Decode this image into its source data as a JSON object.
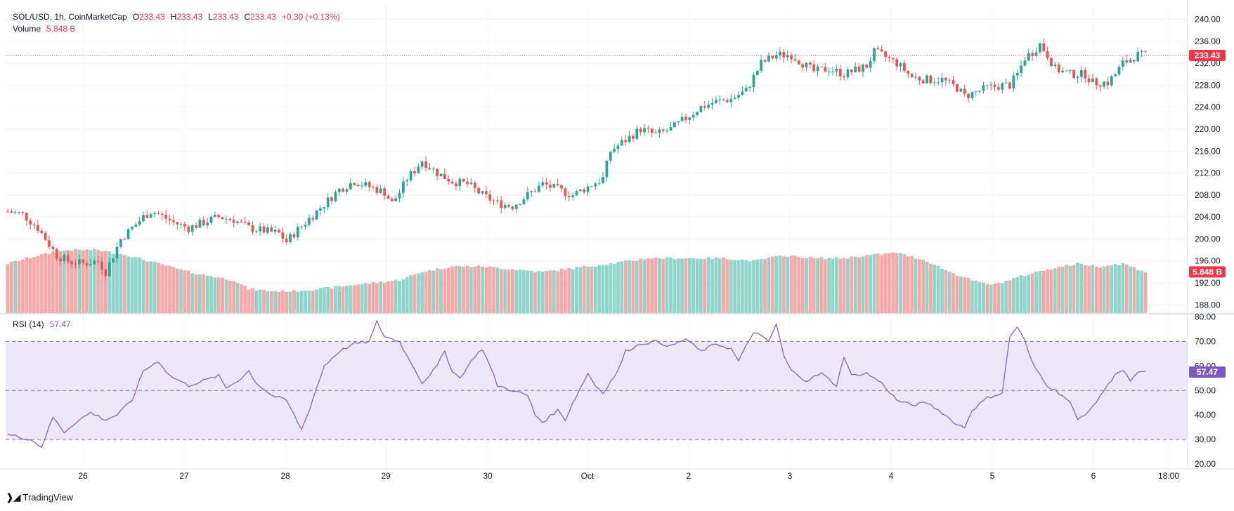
{
  "header": {
    "symbol": "SOL/USD, 1h, CoinMarketCap",
    "o_label": "O",
    "o_value": "233.43",
    "h_label": "H",
    "h_value": "233.43",
    "l_label": "L",
    "l_value": "233.43",
    "c_label": "C",
    "c_value": "233.43",
    "change": "+0.30 (+0.13%)",
    "volume_label": "Volume",
    "volume_value": "5.848 B",
    "rsi_label": "RSI (14)",
    "rsi_value": "57.47"
  },
  "footer": {
    "brand": "TradingView"
  },
  "colors": {
    "up": "#26a69a",
    "down": "#ef5350",
    "vol_up": "#8fd5c9",
    "vol_down": "#f7a8a8",
    "rsi_line": "#7e57c2",
    "rsi_band": "#ece8f8",
    "price_line": "#f23645",
    "grid": "#f0f3fa"
  },
  "chart_data": [
    {
      "type": "candlestick",
      "title": "SOL/USD, 1h, CoinMarketCap",
      "y_axis_ticks": [
        "240.00",
        "236.00",
        "232.00",
        "228.00",
        "224.00",
        "220.00",
        "216.00",
        "212.00",
        "208.00",
        "204.00",
        "200.00",
        "196.00",
        "192.00",
        "188.00"
      ],
      "ylim": [
        186.5,
        242.5
      ],
      "x_axis_ticks": [
        "26",
        "27",
        "28",
        "29",
        "30",
        "Oct",
        "2",
        "3",
        "4",
        "5",
        "6",
        "18:00"
      ],
      "last_price_label": "233.43",
      "volume_label": "5.848 B",
      "anchors_price": [
        [
          0,
          205
        ],
        [
          4,
          204.5
        ],
        [
          8,
          202
        ],
        [
          10,
          200
        ],
        [
          13,
          197
        ],
        [
          16,
          196
        ],
        [
          20,
          195.5
        ],
        [
          24,
          196
        ],
        [
          26,
          194
        ],
        [
          28,
          197
        ],
        [
          30,
          200
        ],
        [
          33,
          202
        ],
        [
          36,
          204
        ],
        [
          38,
          205
        ],
        [
          40,
          204.5
        ],
        [
          44,
          203
        ],
        [
          48,
          202
        ],
        [
          52,
          203
        ],
        [
          56,
          204
        ],
        [
          60,
          203.5
        ],
        [
          64,
          202
        ],
        [
          68,
          201.5
        ],
        [
          72,
          201
        ],
        [
          74,
          199.5
        ],
        [
          76,
          201
        ],
        [
          79,
          203
        ],
        [
          82,
          205
        ],
        [
          85,
          207
        ],
        [
          88,
          209
        ],
        [
          92,
          210.5
        ],
        [
          96,
          209.5
        ],
        [
          100,
          208.5
        ],
        [
          102,
          206.5
        ],
        [
          104,
          208.5
        ],
        [
          106,
          211
        ],
        [
          108,
          212.5
        ],
        [
          110,
          214.3
        ],
        [
          114,
          212
        ],
        [
          118,
          210.5
        ],
        [
          122,
          210
        ],
        [
          126,
          208
        ],
        [
          130,
          206.5
        ],
        [
          134,
          206
        ],
        [
          138,
          208
        ],
        [
          142,
          210
        ],
        [
          146,
          209
        ],
        [
          150,
          208
        ],
        [
          154,
          209.5
        ],
        [
          158,
          211
        ],
        [
          160,
          216
        ],
        [
          164,
          218
        ],
        [
          168,
          220
        ],
        [
          172,
          219
        ],
        [
          176,
          220
        ],
        [
          180,
          222
        ],
        [
          184,
          224
        ],
        [
          188,
          225
        ],
        [
          192,
          225.5
        ],
        [
          196,
          227
        ],
        [
          200,
          232
        ],
        [
          204,
          233.5
        ],
        [
          208,
          233.5
        ],
        [
          210,
          232.5
        ],
        [
          212,
          231.5
        ],
        [
          214,
          230.5
        ],
        [
          218,
          231
        ],
        [
          222,
          230
        ],
        [
          226,
          231
        ],
        [
          228,
          231.5
        ],
        [
          230,
          234
        ],
        [
          232,
          233.5
        ],
        [
          236,
          232
        ],
        [
          240,
          229.5
        ],
        [
          244,
          229
        ],
        [
          248,
          229
        ],
        [
          252,
          227.5
        ],
        [
          254,
          226
        ],
        [
          256,
          226.5
        ],
        [
          260,
          227.5
        ],
        [
          264,
          228
        ],
        [
          266,
          228
        ],
        [
          268,
          230
        ],
        [
          270,
          233
        ],
        [
          272,
          234
        ],
        [
          274,
          235.5
        ],
        [
          276,
          233.5
        ],
        [
          278,
          231
        ],
        [
          282,
          230
        ],
        [
          286,
          230
        ],
        [
          288,
          228.5
        ],
        [
          292,
          228.5
        ],
        [
          294,
          230
        ],
        [
          296,
          232
        ],
        [
          300,
          233.5
        ],
        [
          302,
          233.4
        ]
      ],
      "anchors_volume": [
        [
          0,
          195.5
        ],
        [
          8,
          197
        ],
        [
          16,
          198
        ],
        [
          24,
          198
        ],
        [
          32,
          197
        ],
        [
          40,
          195.5
        ],
        [
          48,
          194
        ],
        [
          56,
          193
        ],
        [
          60,
          192.5
        ],
        [
          64,
          190.9
        ],
        [
          70,
          190.5
        ],
        [
          76,
          190.5
        ],
        [
          84,
          191
        ],
        [
          94,
          191.8
        ],
        [
          104,
          192.5
        ],
        [
          110,
          194
        ],
        [
          118,
          195
        ],
        [
          126,
          195
        ],
        [
          134,
          194.5
        ],
        [
          142,
          194
        ],
        [
          148,
          194.5
        ],
        [
          154,
          195
        ],
        [
          160,
          195.5
        ],
        [
          170,
          196.5
        ],
        [
          182,
          196.5
        ],
        [
          190,
          196.5
        ],
        [
          198,
          196
        ],
        [
          206,
          197
        ],
        [
          214,
          196.5
        ],
        [
          222,
          196.5
        ],
        [
          228,
          197
        ],
        [
          236,
          197.5
        ],
        [
          244,
          196
        ],
        [
          250,
          194
        ],
        [
          258,
          192
        ],
        [
          262,
          191.7
        ],
        [
          268,
          193
        ],
        [
          276,
          194.5
        ],
        [
          284,
          195.5
        ],
        [
          290,
          195
        ],
        [
          296,
          195.5
        ],
        [
          302,
          194
        ]
      ],
      "rsi_anchors": [
        [
          0,
          32
        ],
        [
          6,
          30
        ],
        [
          9,
          27
        ],
        [
          12,
          39
        ],
        [
          15,
          33
        ],
        [
          18,
          37
        ],
        [
          22,
          41
        ],
        [
          26,
          38
        ],
        [
          29,
          40
        ],
        [
          33,
          46
        ],
        [
          36,
          58
        ],
        [
          40,
          62
        ],
        [
          43,
          56
        ],
        [
          48,
          52
        ],
        [
          52,
          54
        ],
        [
          56,
          56
        ],
        [
          58,
          51
        ],
        [
          62,
          55
        ],
        [
          64,
          58
        ],
        [
          66,
          53
        ],
        [
          70,
          48
        ],
        [
          74,
          46
        ],
        [
          76,
          40
        ],
        [
          78,
          34
        ],
        [
          80,
          42
        ],
        [
          84,
          60
        ],
        [
          88,
          66
        ],
        [
          92,
          69
        ],
        [
          96,
          70
        ],
        [
          98,
          78
        ],
        [
          100,
          72
        ],
        [
          104,
          70
        ],
        [
          106,
          64
        ],
        [
          108,
          59
        ],
        [
          110,
          53
        ],
        [
          114,
          60
        ],
        [
          116,
          66
        ],
        [
          118,
          58
        ],
        [
          120,
          55
        ],
        [
          124,
          64
        ],
        [
          126,
          67
        ],
        [
          128,
          60
        ],
        [
          130,
          52
        ],
        [
          134,
          50
        ],
        [
          138,
          48
        ],
        [
          140,
          40
        ],
        [
          142,
          37
        ],
        [
          146,
          42
        ],
        [
          148,
          38
        ],
        [
          150,
          45
        ],
        [
          154,
          57
        ],
        [
          156,
          52
        ],
        [
          158,
          49
        ],
        [
          162,
          58
        ],
        [
          164,
          66
        ],
        [
          168,
          69
        ],
        [
          172,
          70
        ],
        [
          176,
          68
        ],
        [
          180,
          71
        ],
        [
          184,
          66
        ],
        [
          188,
          69
        ],
        [
          192,
          67
        ],
        [
          194,
          62
        ],
        [
          196,
          68
        ],
        [
          198,
          74
        ],
        [
          202,
          70
        ],
        [
          204,
          77
        ],
        [
          206,
          64
        ],
        [
          208,
          58
        ],
        [
          212,
          54
        ],
        [
          216,
          57
        ],
        [
          220,
          52
        ],
        [
          222,
          64
        ],
        [
          224,
          56
        ],
        [
          228,
          57
        ],
        [
          232,
          53
        ],
        [
          236,
          46
        ],
        [
          240,
          44
        ],
        [
          244,
          45
        ],
        [
          248,
          41
        ],
        [
          252,
          36
        ],
        [
          254,
          35
        ],
        [
          256,
          42
        ],
        [
          260,
          47
        ],
        [
          264,
          49
        ],
        [
          266,
          72
        ],
        [
          268,
          76
        ],
        [
          270,
          70
        ],
        [
          272,
          61
        ],
        [
          276,
          52
        ],
        [
          280,
          48
        ],
        [
          282,
          45
        ],
        [
          284,
          38
        ],
        [
          288,
          43
        ],
        [
          290,
          48
        ],
        [
          292,
          52
        ],
        [
          294,
          57
        ],
        [
          296,
          58
        ],
        [
          298,
          54
        ],
        [
          300,
          57
        ],
        [
          302,
          57.5
        ]
      ],
      "rsi_ticks": [
        "80.00",
        "70.00",
        "60.00",
        "50.00",
        "40.00",
        "30.00",
        "20.00"
      ],
      "rsi_ylim": [
        18,
        81
      ],
      "rsi_upper": 70,
      "rsi_lower": 30,
      "rsi_mid": 50,
      "rsi_last": "57.47",
      "candle_count": 303
    }
  ]
}
